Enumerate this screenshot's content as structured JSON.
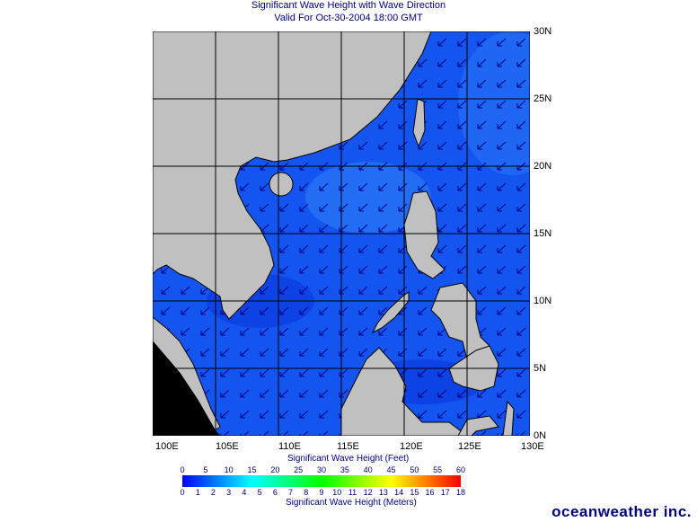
{
  "title": "Significant Wave Height with Wave Direction",
  "subtitle": "Valid For Oct-30-2004 18:00 GMT",
  "map": {
    "lon_range": [
      100,
      130
    ],
    "lat_range": [
      0,
      30
    ],
    "lon_labels": [
      "100E",
      "105E",
      "110E",
      "115E",
      "120E",
      "125E",
      "130E"
    ],
    "lat_labels": [
      "30N",
      "25N",
      "20N",
      "15N",
      "10N",
      "5N",
      "0N"
    ],
    "colors": {
      "ocean": "#1455f0",
      "land": "#c0c0c0",
      "arrows": "#000080",
      "grid": "#000000"
    },
    "wave_direction": "toward southwest"
  },
  "legend": {
    "feet_title": "Significant Wave Height (Feet)",
    "meters_title": "Significant Wave Height (Meters)",
    "feet_ticks": [
      "0",
      "5",
      "10",
      "15",
      "20",
      "25",
      "30",
      "35",
      "40",
      "45",
      "50",
      "55",
      "60"
    ],
    "meter_ticks": [
      "0",
      "1",
      "2",
      "3",
      "4",
      "5",
      "6",
      "7",
      "8",
      "9",
      "10",
      "11",
      "12",
      "13",
      "14",
      "15",
      "16",
      "17",
      "18"
    ],
    "colors": [
      "#0000ff",
      "#00ffff",
      "#00ff00",
      "#ffff00",
      "#ff0000"
    ]
  },
  "logo": "oceanweather inc."
}
